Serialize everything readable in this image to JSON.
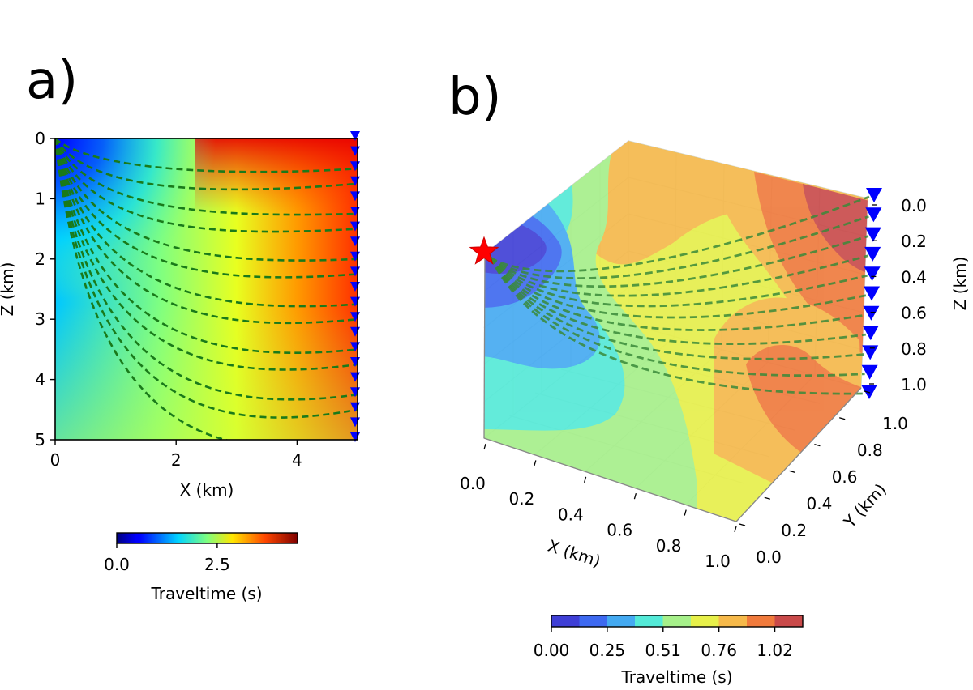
{
  "panels": {
    "a_label": "a)",
    "b_label": "b)"
  },
  "chart_data": [
    {
      "type": "heatmap",
      "panel": "a)",
      "xlabel": "X (km)",
      "ylabel": "Z (km)",
      "xlim": [
        0,
        5
      ],
      "ylim": [
        0,
        5
      ],
      "y_inverted": true,
      "xticks": [
        "0",
        "2",
        "4"
      ],
      "yticks": [
        "0",
        "1",
        "2",
        "3",
        "4",
        "5"
      ],
      "source": {
        "x": 0,
        "z": 0
      },
      "receivers": {
        "x": 5,
        "z": [
          0.0,
          0.25,
          0.5,
          0.75,
          1.0,
          1.25,
          1.5,
          1.75,
          2.0,
          2.25,
          2.5,
          2.75,
          3.0,
          3.25,
          3.5,
          3.75,
          4.0,
          4.25,
          4.5,
          4.75,
          5.0
        ]
      },
      "raypaths_sag_depth_km": [
        0.25,
        0.55,
        0.8,
        1.05,
        1.3,
        1.55,
        1.8,
        2.05,
        2.35,
        2.6,
        2.9,
        3.2,
        3.5
      ],
      "colorbar": {
        "label": "Traveltime (s)",
        "ticks": [
          "0.0",
          "2.5"
        ],
        "range": [
          0,
          4.5
        ],
        "colormap": "jet"
      },
      "colors": {
        "raypath": "#1a7a1a",
        "receiver": "#0000ff"
      }
    },
    {
      "type": "heatmap",
      "panel": "b)",
      "projection": "3d",
      "xlabel": "X (km)",
      "ylabel": "Y (km)",
      "zlabel": "Z (km)",
      "xticks": [
        "0.0",
        "0.2",
        "0.4",
        "0.6",
        "0.8",
        "1.0"
      ],
      "yticks": [
        "0.0",
        "0.2",
        "0.4",
        "0.6",
        "0.8",
        "1.0"
      ],
      "zticks": [
        "0.0",
        "0.2",
        "0.4",
        "0.6",
        "0.8",
        "1.0"
      ],
      "source": {
        "x": 0,
        "y": 1,
        "z": 0.3
      },
      "colorbar": {
        "label": "Traveltime (s)",
        "ticks": [
          "0.00",
          "0.25",
          "0.51",
          "0.76",
          "1.02"
        ],
        "levels": 9,
        "colormap": "jet (contour)"
      },
      "colors": {
        "source": "#ff0000",
        "receiver": "#0000ff",
        "raypath": "#3a8a3a"
      }
    }
  ]
}
